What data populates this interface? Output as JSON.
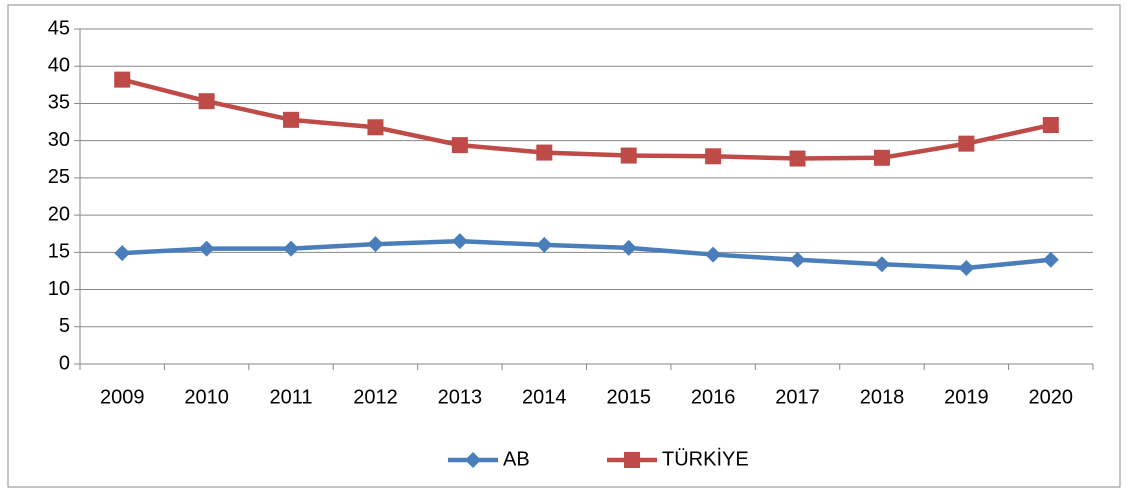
{
  "chart_data": {
    "type": "line",
    "categories": [
      "2009",
      "2010",
      "2011",
      "2012",
      "2013",
      "2014",
      "2015",
      "2016",
      "2017",
      "2018",
      "2019",
      "2020"
    ],
    "series": [
      {
        "name": "AB",
        "color": "#4a7ebb",
        "marker": "diamond",
        "values": [
          14.9,
          15.5,
          15.5,
          16.1,
          16.5,
          16.0,
          15.6,
          14.7,
          14.0,
          13.4,
          12.9,
          14.0
        ]
      },
      {
        "name": "TÜRKİYE",
        "color": "#be4b48",
        "marker": "square",
        "values": [
          38.2,
          35.3,
          32.8,
          31.8,
          29.4,
          28.4,
          28.0,
          27.9,
          27.6,
          27.7,
          29.6,
          32.1
        ]
      }
    ],
    "ylim": [
      0,
      45
    ],
    "yticks": [
      0,
      5,
      10,
      15,
      20,
      25,
      30,
      35,
      40,
      45
    ],
    "grid": true,
    "legend": "bottom"
  }
}
